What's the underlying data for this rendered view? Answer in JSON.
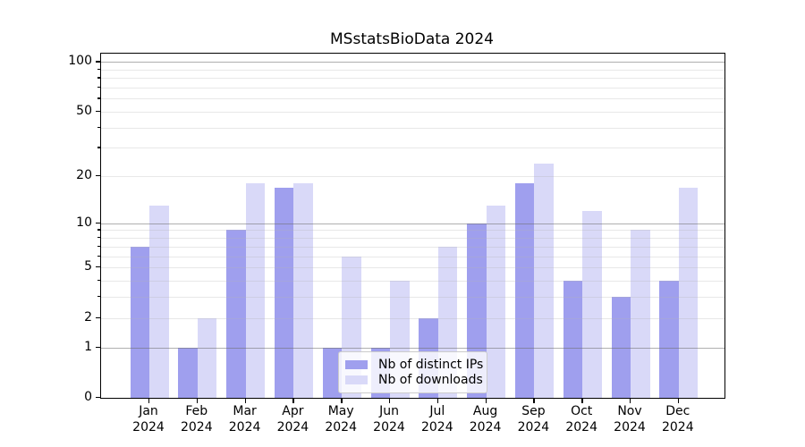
{
  "title": "MSstatsBioData 2024",
  "chart_data": {
    "type": "bar",
    "title": "MSstatsBioData 2024",
    "categories": [
      "Jan",
      "Feb",
      "Mar",
      "Apr",
      "May",
      "Jun",
      "Jul",
      "Aug",
      "Sep",
      "Oct",
      "Nov",
      "Dec"
    ],
    "category_year": "2024",
    "series": [
      {
        "name": "Nb of distinct IPs",
        "color": "#9f9fee",
        "values": [
          7,
          1,
          9,
          17,
          1,
          1,
          2,
          10,
          18,
          4,
          3,
          4
        ]
      },
      {
        "name": "Nb of downloads",
        "color": "#d9d9f8",
        "values": [
          13,
          2,
          18,
          18,
          6,
          4,
          7,
          13,
          24,
          12,
          9,
          17
        ]
      }
    ],
    "xlabel": "",
    "ylabel": "",
    "yscale": "log1p",
    "ylim": [
      0,
      112
    ],
    "ytick_values": [
      0,
      1,
      2,
      5,
      10,
      20,
      50,
      100
    ],
    "ytick_labels": [
      "0",
      "1",
      "2",
      "5",
      "10",
      "20",
      "50",
      "100"
    ],
    "major_grid_values": [
      1,
      10,
      100
    ],
    "minor_grid_values": [
      2,
      3,
      4,
      5,
      6,
      7,
      8,
      9,
      20,
      30,
      40,
      50,
      60,
      70,
      80,
      90
    ],
    "grid": true,
    "legend_position": "lower center inside"
  },
  "colors": {
    "background": "#ffffff",
    "spine": "#000000",
    "major_grid": "#b0b0b0",
    "minor_grid": "#e9e9e9",
    "legend_border": "#cccccc"
  }
}
